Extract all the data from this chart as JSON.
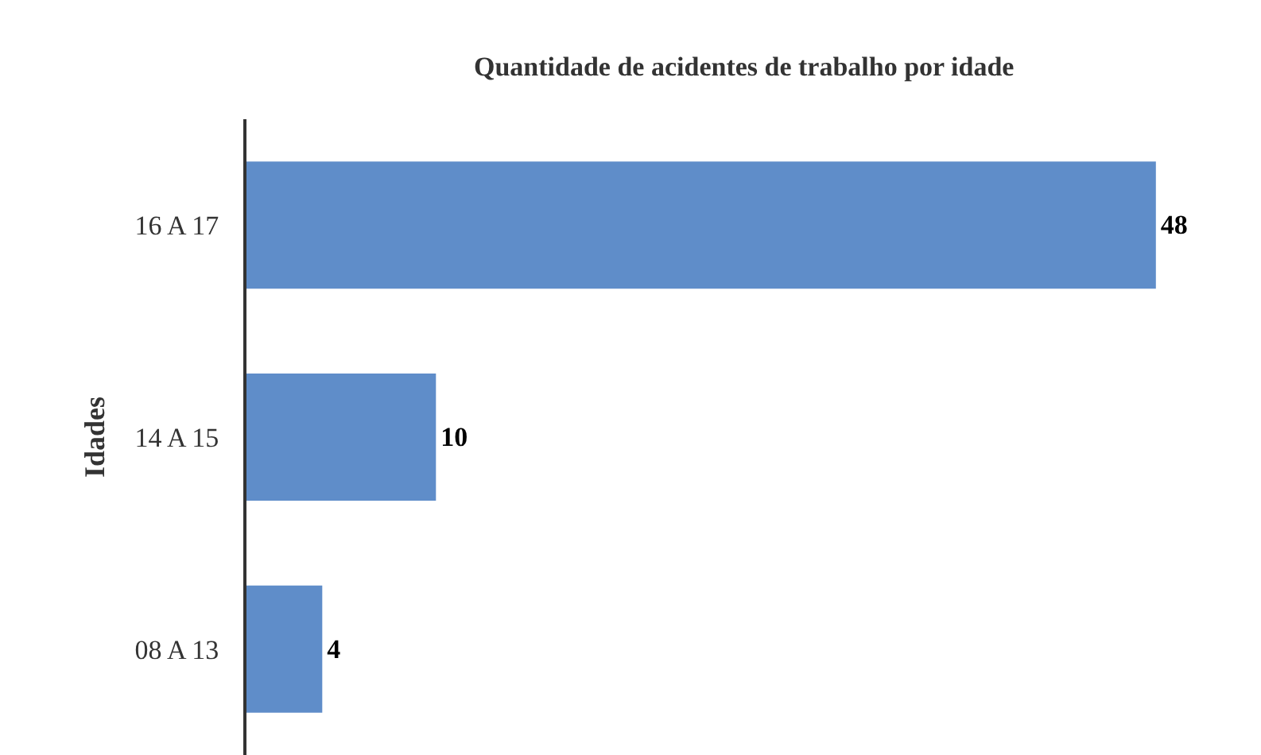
{
  "chart_data": {
    "type": "bar",
    "orientation": "horizontal",
    "title": "Quantidade de acidentes de trabalho por idade",
    "ylabel": "Idades",
    "categories": [
      "16 A 17",
      "14 A 15",
      "08 A 13"
    ],
    "values": [
      48,
      10,
      4
    ],
    "color": "#5f8dc9",
    "data_labels": true
  }
}
